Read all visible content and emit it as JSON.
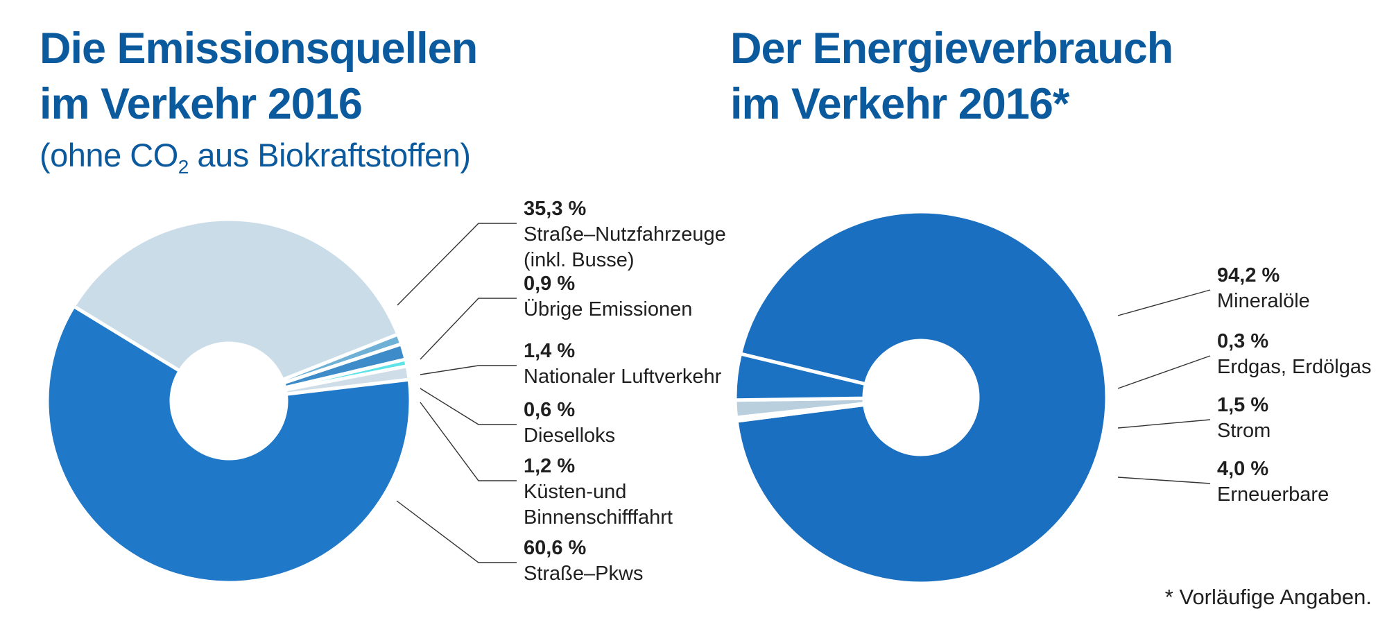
{
  "left": {
    "title_line1": "Die Emissionsquellen",
    "title_line2": "im Verkehr 2016",
    "subtitle_pre": "(ohne CO",
    "subtitle_sub": "2",
    "subtitle_post": " aus Biokraftstoffen)"
  },
  "right": {
    "title_line1": "Der Energieverbrauch",
    "title_line2": "im Verkehr 2016*"
  },
  "footnote": "* Vorläufige Angaben.",
  "chart_data": [
    {
      "type": "pie",
      "title": "Die Emissionsquellen im Verkehr 2016",
      "subtitle": "(ohne CO2 aus Biokraftstoffen)",
      "unit": "%",
      "slices": [
        {
          "label": "Straße–Nutzfahrzeuge (inkl. Busse)",
          "lines": [
            "Straße–Nutzfahrzeuge",
            "(inkl. Busse)"
          ],
          "value": 35.3,
          "value_label": "35,3 %",
          "color": "#c9dce8"
        },
        {
          "label": "Übrige Emissionen",
          "lines": [
            "Übrige Emissionen"
          ],
          "value": 0.9,
          "value_label": "0,9 %",
          "color": "#6fb1d6"
        },
        {
          "label": "Nationaler Luftverkehr",
          "lines": [
            "Nationaler Luftverkehr"
          ],
          "value": 1.4,
          "value_label": "1,4 %",
          "color": "#3d8cc9"
        },
        {
          "label": "Dieselloks",
          "lines": [
            "Dieselloks"
          ],
          "value": 0.6,
          "value_label": "0,6 %",
          "color": "#5ee3e8"
        },
        {
          "label": "Küsten- und Binnenschifffahrt",
          "lines": [
            "Küsten-und",
            "Binnenschifffahrt"
          ],
          "value": 1.2,
          "value_label": "1,2 %",
          "color": "#cfdde8"
        },
        {
          "label": "Straße–Pkws",
          "lines": [
            "Straße–Pkws"
          ],
          "value": 60.6,
          "value_label": "60,6 %",
          "color": "#1f78c8"
        }
      ]
    },
    {
      "type": "pie",
      "title": "Der Energieverbrauch im Verkehr 2016*",
      "unit": "%",
      "slices": [
        {
          "label": "Mineralöle",
          "lines": [
            "Mineralöle"
          ],
          "value": 94.2,
          "value_label": "94,2 %",
          "color": "#1a6fc0"
        },
        {
          "label": "Erdgas, Erdölgas",
          "lines": [
            "Erdgas, Erdölgas"
          ],
          "value": 0.3,
          "value_label": "0,3 %",
          "color": "#5aa6d2"
        },
        {
          "label": "Strom",
          "lines": [
            "Strom"
          ],
          "value": 1.5,
          "value_label": "1,5 %",
          "color": "#b9cfdd"
        },
        {
          "label": "Erneuerbare",
          "lines": [
            "Erneuerbare"
          ],
          "value": 4.0,
          "value_label": "4,0 %",
          "color": "#1c72c2"
        }
      ]
    }
  ],
  "colors": {
    "title": "#0c5a9e",
    "text": "#1f1f1f"
  }
}
